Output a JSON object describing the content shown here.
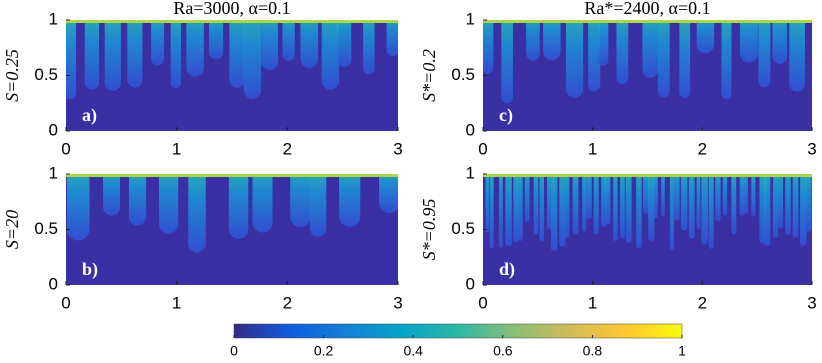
{
  "chart_data": [
    {
      "type": "heatmap",
      "title": "Ra=3000, α=0.1",
      "ylabel": "S=0.25",
      "panel_label": "a)",
      "xlim": [
        0,
        3
      ],
      "ylim": [
        0,
        1
      ],
      "xticks": [
        0,
        1,
        2,
        3
      ],
      "yticks": [
        0,
        0.5,
        1
      ]
    },
    {
      "type": "heatmap",
      "ylabel": "S=20",
      "panel_label": "b)",
      "xlim": [
        0,
        3
      ],
      "ylim": [
        0,
        1
      ],
      "xticks": [
        0,
        1,
        2,
        3
      ],
      "yticks": [
        0,
        0.5,
        1
      ]
    },
    {
      "type": "heatmap",
      "title": "Ra*=2400, α=0.1",
      "ylabel": "S*=0.2",
      "panel_label": "c)",
      "xlim": [
        0,
        3
      ],
      "ylim": [
        0,
        1
      ],
      "xticks": [
        0,
        1,
        2,
        3
      ],
      "yticks": [
        0,
        0.5,
        1
      ]
    },
    {
      "type": "heatmap",
      "ylabel": "S*=0.95",
      "panel_label": "d)",
      "xlim": [
        0,
        3
      ],
      "ylim": [
        0,
        1
      ],
      "xticks": [
        0,
        1,
        2,
        3
      ],
      "yticks": [
        0,
        0.5,
        1
      ]
    }
  ],
  "colorbar": {
    "lim": [
      0,
      1
    ],
    "ticks": [
      0,
      0.2,
      0.4,
      0.6,
      0.8,
      1
    ],
    "colors": [
      "#352a87",
      "#0f5cdd",
      "#1481d6",
      "#06a4ca",
      "#2eb7a4",
      "#87bf77",
      "#d1bb59",
      "#fec832",
      "#f9fb0e"
    ]
  }
}
